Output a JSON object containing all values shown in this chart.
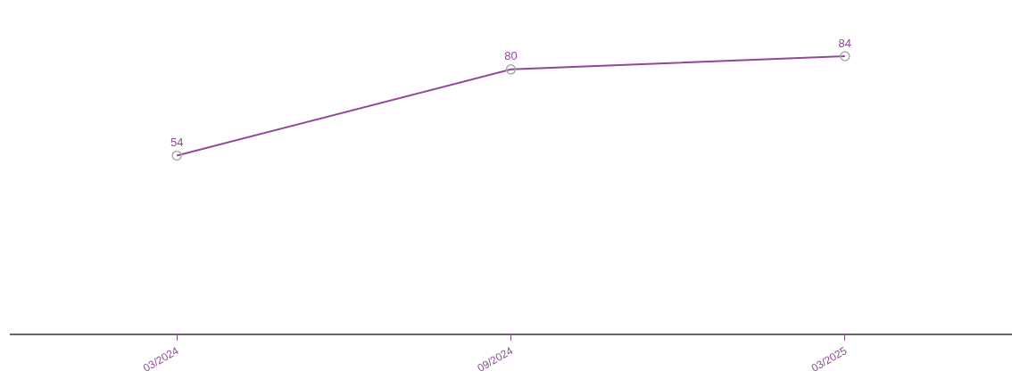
{
  "chart_data": {
    "type": "line",
    "tick_labels": "x",
    "categories": [
      "03/2024",
      "09/2024",
      "03/2025"
    ],
    "series": [
      {
        "color": "#8e4a96",
        "values": [
          54,
          80,
          84
        ]
      }
    ],
    "data_labels": true,
    "marker": "circle",
    "line_style": "solid",
    "grid": false
  }
}
